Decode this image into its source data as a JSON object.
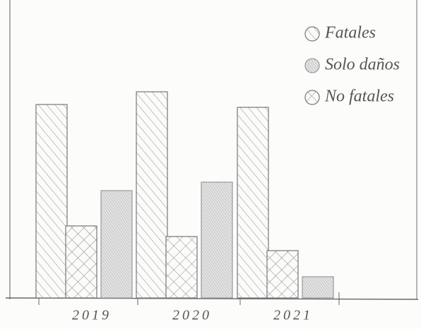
{
  "chart_data": {
    "type": "bar",
    "categories": [
      "2019",
      "2020",
      "2021"
    ],
    "series": [
      {
        "name": "Fatales",
        "color": "#777777",
        "pattern": "diagonal",
        "values": [
          274,
          292,
          270
        ]
      },
      {
        "name": "Solo daños",
        "color": "#999999",
        "pattern": "shaded",
        "values": [
          152,
          164,
          30
        ]
      },
      {
        "name": "No fatales",
        "color": "#777777",
        "pattern": "crosshatch",
        "values": [
          102,
          87,
          67
        ]
      }
    ],
    "ylim": [
      0,
      300
    ],
    "legend": "top-right"
  }
}
